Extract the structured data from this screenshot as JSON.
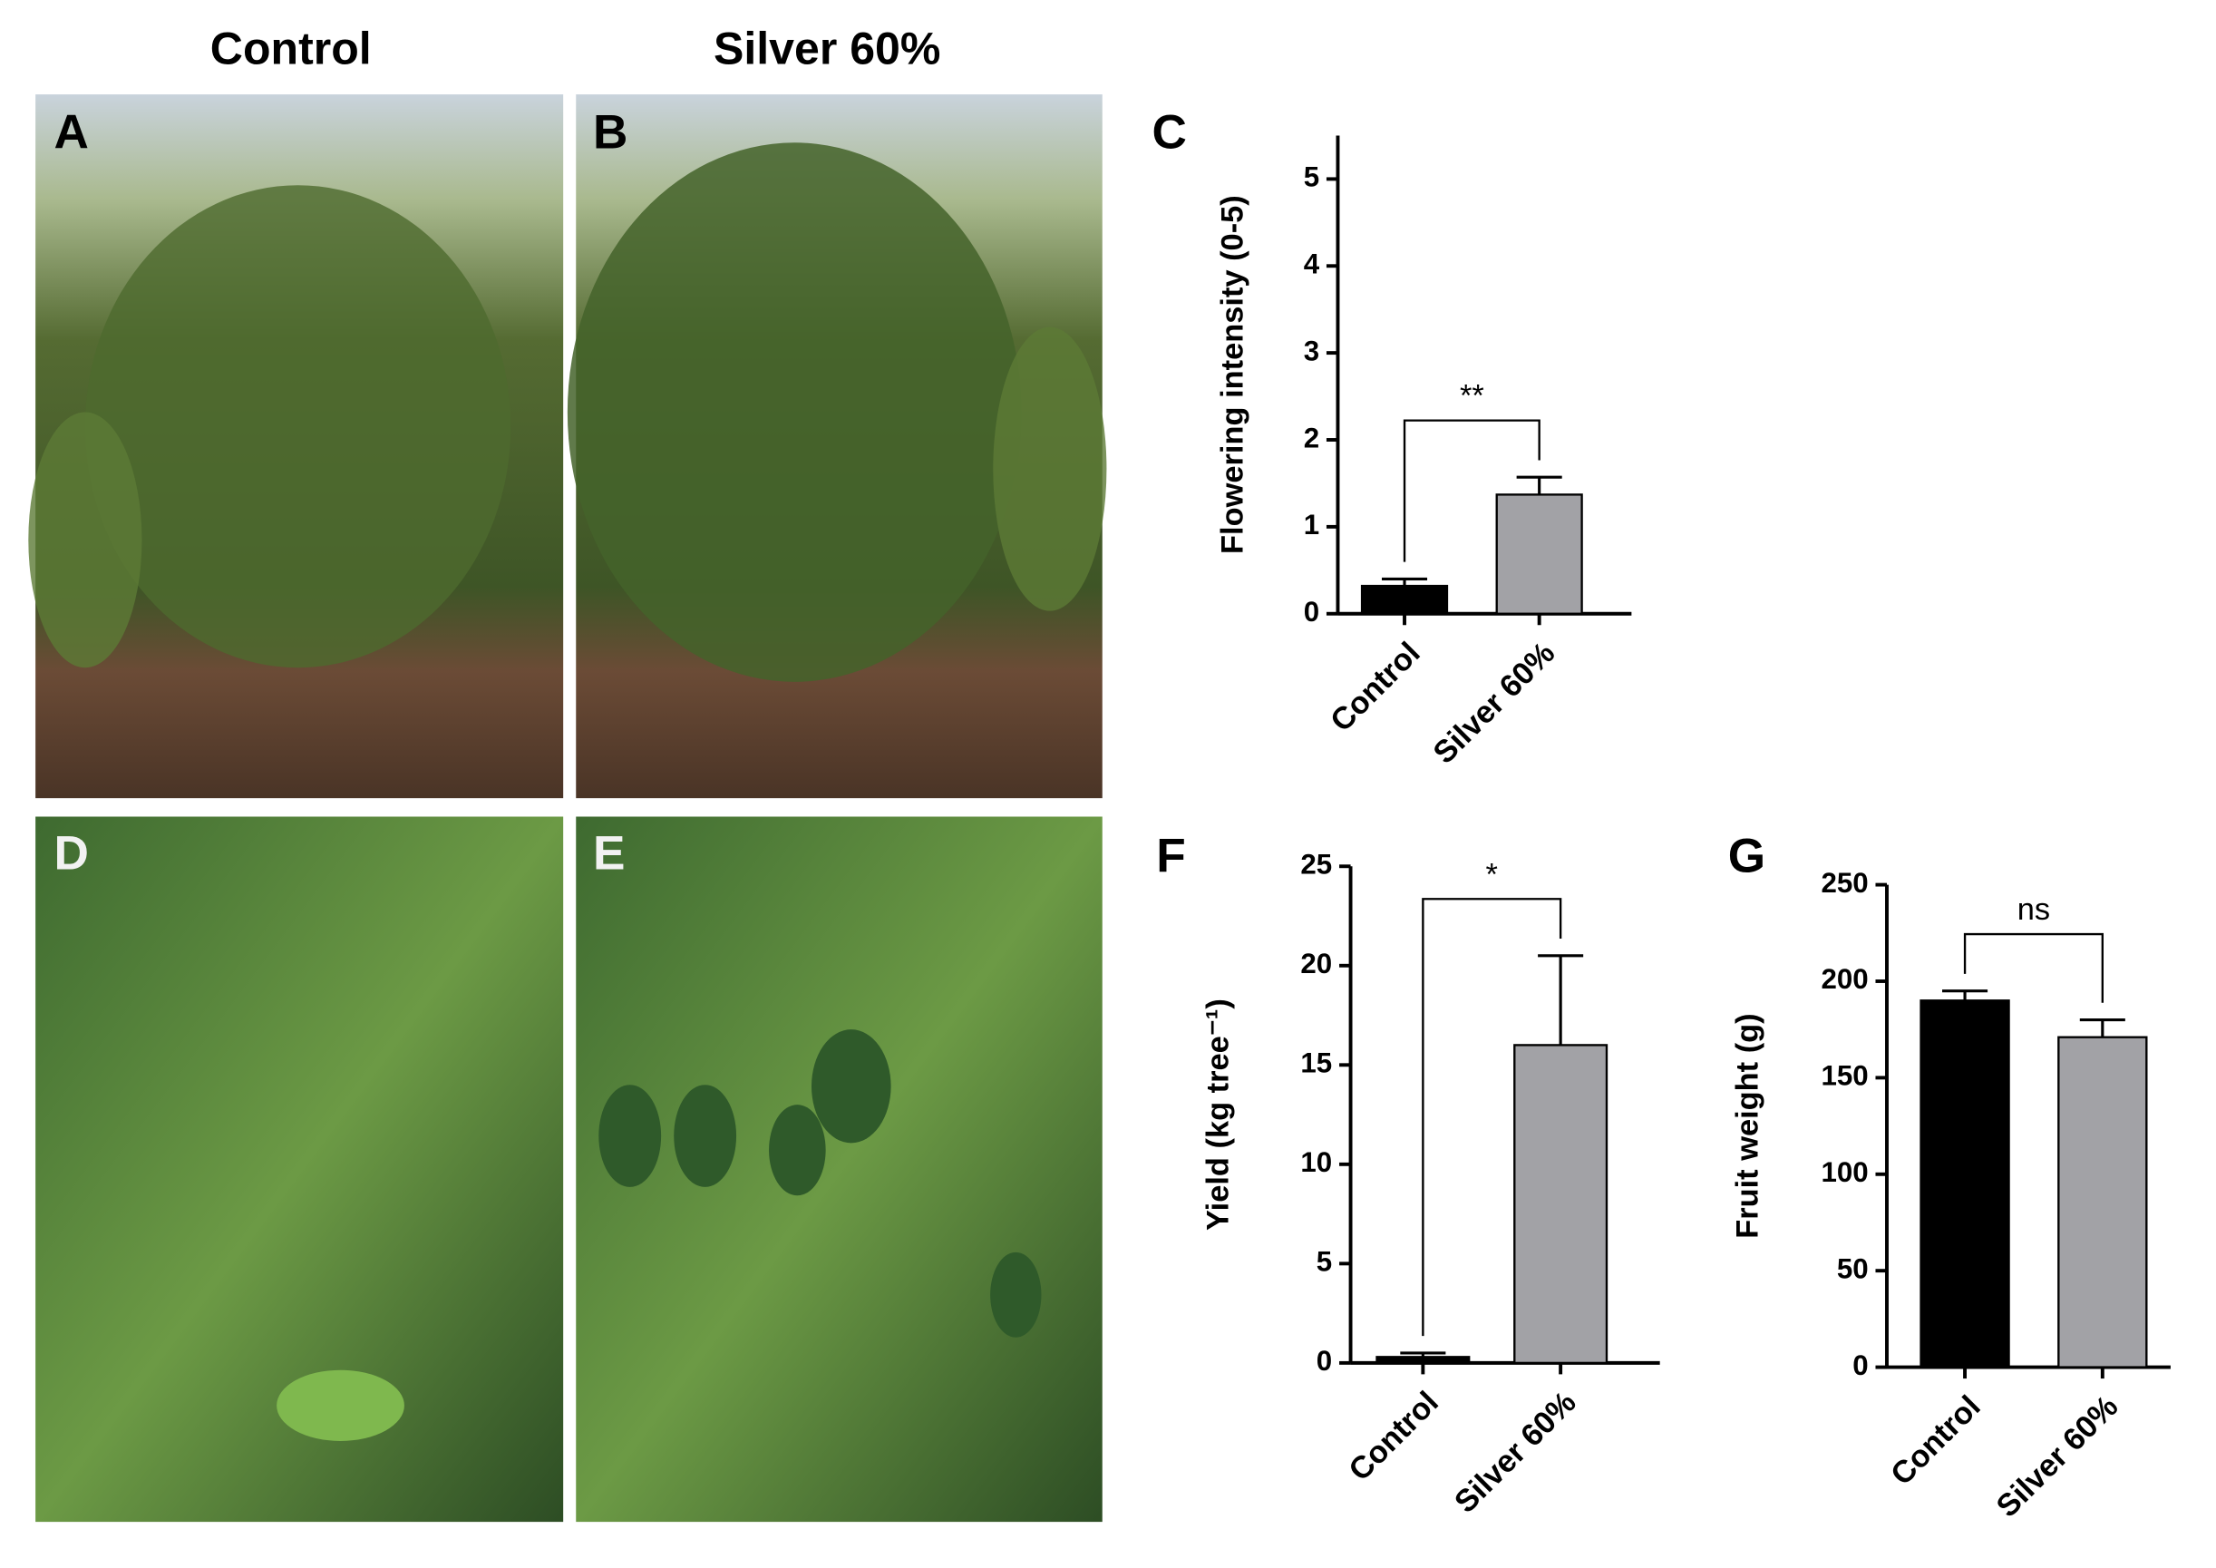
{
  "headers": [
    "Control",
    "Silver 60%"
  ],
  "photo_panels": [
    "A",
    "B",
    "D",
    "E"
  ],
  "chart_data": [
    {
      "type": "bar",
      "panel": "C",
      "ylabel": "Flowering intensity (0-5)",
      "categories": [
        "Control",
        "Silver 60%"
      ],
      "values": [
        0.32,
        1.37
      ],
      "errors": [
        0.08,
        0.2
      ],
      "colors": [
        "#000000",
        "#a2a2a6"
      ],
      "ylim": [
        0,
        5.5
      ],
      "yticks": [
        0,
        1,
        2,
        3,
        4,
        5
      ],
      "annotation": "**"
    },
    {
      "type": "bar",
      "panel": "F",
      "ylabel": "Yield (kg tree⁻¹)",
      "categories": [
        "Control",
        "Silver 60%"
      ],
      "values": [
        0.3,
        16
      ],
      "errors": [
        0.2,
        4.5
      ],
      "colors": [
        "#000000",
        "#a2a2a6"
      ],
      "ylim": [
        0,
        25
      ],
      "yticks": [
        0,
        5,
        10,
        15,
        20,
        25
      ],
      "annotation": "*"
    },
    {
      "type": "bar",
      "panel": "G",
      "ylabel": "Fruit weight (g)",
      "categories": [
        "Control",
        "Silver 60%"
      ],
      "values": [
        190,
        171
      ],
      "errors": [
        5,
        9
      ],
      "colors": [
        "#000000",
        "#a2a2a6"
      ],
      "ylim": [
        0,
        250
      ],
      "yticks": [
        0,
        50,
        100,
        150,
        200,
        250
      ],
      "annotation": "ns"
    }
  ]
}
